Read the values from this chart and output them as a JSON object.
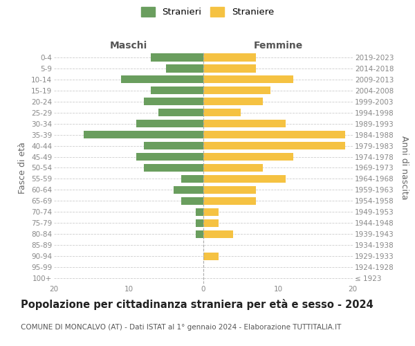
{
  "age_groups": [
    "100+",
    "95-99",
    "90-94",
    "85-89",
    "80-84",
    "75-79",
    "70-74",
    "65-69",
    "60-64",
    "55-59",
    "50-54",
    "45-49",
    "40-44",
    "35-39",
    "30-34",
    "25-29",
    "20-24",
    "15-19",
    "10-14",
    "5-9",
    "0-4"
  ],
  "birth_years": [
    "≤ 1923",
    "1924-1928",
    "1929-1933",
    "1934-1938",
    "1939-1943",
    "1944-1948",
    "1949-1953",
    "1954-1958",
    "1959-1963",
    "1964-1968",
    "1969-1973",
    "1974-1978",
    "1979-1983",
    "1984-1988",
    "1989-1993",
    "1994-1998",
    "1999-2003",
    "2004-2008",
    "2009-2013",
    "2014-2018",
    "2019-2023"
  ],
  "maschi": [
    0,
    0,
    0,
    0,
    1,
    1,
    1,
    3,
    4,
    3,
    8,
    9,
    8,
    16,
    9,
    6,
    8,
    7,
    11,
    5,
    7
  ],
  "femmine": [
    0,
    0,
    2,
    0,
    4,
    2,
    2,
    7,
    7,
    11,
    8,
    12,
    19,
    19,
    11,
    5,
    8,
    9,
    12,
    7,
    7
  ],
  "male_color": "#6a9e5e",
  "female_color": "#f5c242",
  "title": "Popolazione per cittadinanza straniera per età e sesso - 2024",
  "subtitle": "COMUNE DI MONCALVO (AT) - Dati ISTAT al 1° gennaio 2024 - Elaborazione TUTTITALIA.IT",
  "xlabel_left": "Maschi",
  "xlabel_right": "Femmine",
  "ylabel_left": "Fasce di età",
  "ylabel_right": "Anni di nascita",
  "legend_stranieri": "Stranieri",
  "legend_straniere": "Straniere",
  "xlim": 20,
  "background_color": "#ffffff",
  "grid_color": "#cccccc",
  "bar_height": 0.7,
  "tick_label_color": "#888888",
  "title_fontsize": 10.5,
  "subtitle_fontsize": 7.5,
  "axis_label_fontsize": 9,
  "tick_fontsize": 7.5,
  "legend_fontsize": 9.5
}
